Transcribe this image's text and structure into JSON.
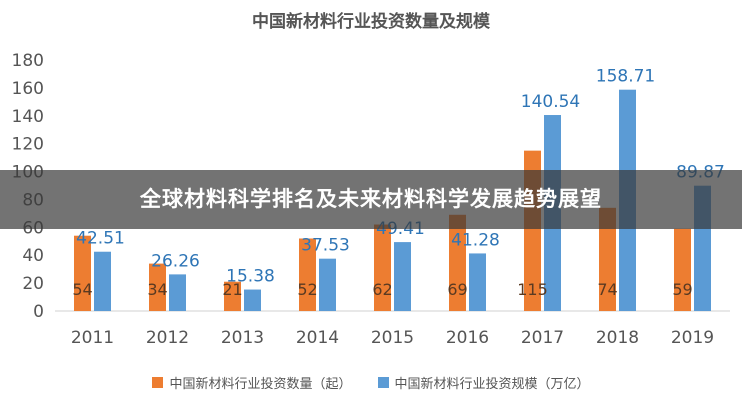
{
  "chart_data": {
    "type": "bar",
    "title": "中国新材料行业投资数量及规模",
    "categories": [
      "2011",
      "2012",
      "2013",
      "2014",
      "2015",
      "2016",
      "2017",
      "2018",
      "2019"
    ],
    "series": [
      {
        "name": "中国新材料行业投资数量（起）",
        "color": "#ed7d31",
        "values": [
          54,
          34,
          21,
          52,
          62,
          69,
          115,
          74,
          59
        ],
        "labels": [
          "54",
          "34",
          "21",
          "52",
          "62",
          "69",
          "115",
          "74",
          "59"
        ]
      },
      {
        "name": "中国新材料行业投资规模（万亿）",
        "color": "#5b9bd5",
        "values": [
          42.51,
          26.26,
          15.38,
          37.53,
          49.41,
          41.28,
          140.54,
          158.71,
          89.87
        ],
        "labels": [
          "42.51",
          "26.26",
          "15.38",
          "37.53",
          "49.41",
          "41.28",
          "140.54",
          "158.71",
          "89.87"
        ]
      }
    ],
    "yticks": [
      "0",
      "20",
      "40",
      "60",
      "80",
      "100",
      "120",
      "140",
      "160",
      "180"
    ],
    "ylim": [
      0,
      180
    ],
    "grid": false,
    "legend_position": "bottom"
  },
  "banner": {
    "text": "全球材料科学排名及未来材料科学发展趋势展望"
  },
  "colors": {
    "axis_text": "#555555",
    "value_label_blue": "#2e75b6",
    "banner_bg": "#3a3a3a"
  }
}
